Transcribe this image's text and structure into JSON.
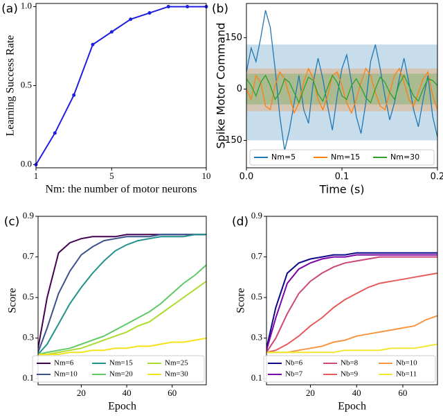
{
  "chart_data": [
    {
      "type": "line",
      "panel_label": "(a)",
      "ylabel": "Learning Success Rate",
      "xlabel": "Nm: the number of motor neurons",
      "marker": true,
      "x": [
        1,
        2,
        3,
        4,
        5,
        6,
        7,
        8,
        9,
        10
      ],
      "series": [
        {
          "color": "#1f1fe0",
          "values": [
            0.0,
            0.2,
            0.44,
            0.76,
            0.84,
            0.92,
            0.96,
            1.0,
            1.0,
            1.0
          ]
        }
      ],
      "xlim": [
        1,
        10
      ],
      "ylim": [
        -0.02,
        1.02
      ],
      "xticks": [
        1,
        5,
        10
      ],
      "yticks": [
        {
          "value": 0,
          "label": "0.0"
        },
        0.5,
        {
          "value": 1,
          "label": "1.0"
        }
      ]
    },
    {
      "type": "line",
      "panel_label": "(b)",
      "ylabel": "Spike Motor Command",
      "xlabel": "Time (s)",
      "legend": "lower center",
      "x": [
        0,
        0.005,
        0.01,
        0.015,
        0.02,
        0.025,
        0.03,
        0.035,
        0.04,
        0.045,
        0.05,
        0.055,
        0.06,
        0.065,
        0.07,
        0.075,
        0.08,
        0.085,
        0.09,
        0.095,
        0.1,
        0.105,
        0.11,
        0.115,
        0.12,
        0.125,
        0.13,
        0.135,
        0.14,
        0.145,
        0.15,
        0.155,
        0.16,
        0.165,
        0.17,
        0.175,
        0.18,
        0.185,
        0.19,
        0.195,
        0.2
      ],
      "series": [
        {
          "name": "Nm=5",
          "color": "#1f77b4",
          "band": [
            -150,
            130
          ],
          "values": [
            50,
            120,
            80,
            150,
            230,
            180,
            60,
            -80,
            -180,
            -120,
            -40,
            40,
            -60,
            -100,
            20,
            90,
            30,
            -50,
            -120,
            -20,
            60,
            100,
            20,
            -80,
            -130,
            -40,
            80,
            130,
            60,
            -20,
            -90,
            -40,
            30,
            90,
            20,
            -60,
            -110,
            -30,
            40,
            -80,
            -140
          ]
        },
        {
          "name": "Nm=15",
          "color": "#ff7f0e",
          "band": [
            -65,
            60
          ],
          "values": [
            0,
            -30,
            40,
            20,
            -50,
            -60,
            10,
            50,
            30,
            -20,
            -70,
            -40,
            20,
            60,
            30,
            -30,
            -60,
            -20,
            40,
            50,
            10,
            -40,
            -70,
            -30,
            20,
            60,
            40,
            -10,
            -50,
            -60,
            -10,
            40,
            60,
            20,
            -30,
            -50,
            -10,
            30,
            50,
            -20,
            -60
          ]
        },
        {
          "name": "Nm=30",
          "color": "#2ca02c",
          "band": [
            -45,
            45
          ],
          "values": [
            30,
            10,
            -20,
            20,
            40,
            10,
            -30,
            -10,
            30,
            20,
            -10,
            -40,
            0,
            35,
            25,
            -15,
            -35,
            5,
            40,
            20,
            -20,
            -30,
            10,
            30,
            5,
            -25,
            -40,
            0,
            35,
            20,
            -10,
            -30,
            15,
            40,
            10,
            -20,
            -35,
            0,
            30,
            25,
            10
          ]
        }
      ],
      "xlim": [
        0,
        0.2
      ],
      "ylim": [
        -230,
        250
      ],
      "xticks": [
        {
          "value": 0,
          "label": "0.0"
        },
        0.1,
        {
          "value": 0.2,
          "label": "0.2"
        }
      ],
      "yticks": [
        {
          "value": -150,
          "label": "−150"
        },
        0,
        150
      ]
    },
    {
      "type": "line",
      "panel_label": "(c)",
      "ylabel": "Score",
      "xlabel": "Epoch",
      "legend": "lower right",
      "x": [
        1,
        5,
        10,
        15,
        20,
        25,
        30,
        35,
        40,
        45,
        50,
        55,
        60,
        65,
        70,
        75
      ],
      "series": [
        {
          "name": "Nm=6",
          "color": "#440154",
          "values": [
            0.25,
            0.5,
            0.72,
            0.77,
            0.79,
            0.8,
            0.8,
            0.8,
            0.81,
            0.81,
            0.81,
            0.81,
            0.81,
            0.81,
            0.81,
            0.81
          ]
        },
        {
          "name": "Nm=10",
          "color": "#3b528b",
          "values": [
            0.23,
            0.35,
            0.52,
            0.63,
            0.71,
            0.75,
            0.78,
            0.79,
            0.8,
            0.8,
            0.8,
            0.81,
            0.81,
            0.81,
            0.81,
            0.81
          ]
        },
        {
          "name": "Nm=15",
          "color": "#21918c",
          "values": [
            0.22,
            0.27,
            0.37,
            0.47,
            0.55,
            0.62,
            0.68,
            0.73,
            0.76,
            0.78,
            0.79,
            0.8,
            0.8,
            0.8,
            0.81,
            0.81
          ]
        },
        {
          "name": "Nm=20",
          "color": "#5ec962",
          "values": [
            0.22,
            0.23,
            0.24,
            0.25,
            0.27,
            0.29,
            0.31,
            0.34,
            0.37,
            0.4,
            0.43,
            0.47,
            0.52,
            0.57,
            0.61,
            0.66
          ]
        },
        {
          "name": "Nm=25",
          "color": "#addc30",
          "values": [
            0.22,
            0.22,
            0.23,
            0.24,
            0.25,
            0.27,
            0.29,
            0.31,
            0.33,
            0.36,
            0.38,
            0.42,
            0.46,
            0.5,
            0.54,
            0.58
          ]
        },
        {
          "name": "Nm=30",
          "color": "#f5e21a",
          "values": [
            0.22,
            0.22,
            0.22,
            0.23,
            0.23,
            0.24,
            0.24,
            0.25,
            0.25,
            0.26,
            0.26,
            0.27,
            0.28,
            0.28,
            0.29,
            0.3
          ]
        }
      ],
      "xlim": [
        1,
        75
      ],
      "ylim": [
        0.07,
        0.9
      ],
      "xticks": [
        20,
        40,
        60
      ],
      "yticks": [
        0.1,
        0.3,
        0.5,
        0.7,
        0.9
      ]
    },
    {
      "type": "line",
      "panel_label": "(d)",
      "ylabel": "Score",
      "xlabel": "Epoch",
      "legend": "lower right",
      "x": [
        1,
        5,
        10,
        15,
        20,
        25,
        30,
        35,
        40,
        45,
        50,
        55,
        60,
        65,
        70,
        75
      ],
      "series": [
        {
          "name": "Nb=6",
          "color": "#0d0887",
          "values": [
            0.25,
            0.45,
            0.62,
            0.67,
            0.69,
            0.7,
            0.71,
            0.71,
            0.72,
            0.72,
            0.72,
            0.72,
            0.72,
            0.72,
            0.72,
            0.72
          ]
        },
        {
          "name": "Nb=7",
          "color": "#7e03a8",
          "values": [
            0.24,
            0.4,
            0.57,
            0.64,
            0.67,
            0.69,
            0.7,
            0.7,
            0.71,
            0.71,
            0.71,
            0.71,
            0.71,
            0.71,
            0.71,
            0.71
          ]
        },
        {
          "name": "Nb=8",
          "color": "#cc4778",
          "values": [
            0.23,
            0.3,
            0.42,
            0.52,
            0.58,
            0.62,
            0.65,
            0.67,
            0.68,
            0.69,
            0.7,
            0.7,
            0.7,
            0.7,
            0.7,
            0.7
          ]
        },
        {
          "name": "Nb=9",
          "color": "#e65a5a",
          "values": [
            0.23,
            0.24,
            0.27,
            0.31,
            0.36,
            0.4,
            0.45,
            0.49,
            0.52,
            0.55,
            0.57,
            0.58,
            0.59,
            0.6,
            0.61,
            0.62
          ]
        },
        {
          "name": "Nb=10",
          "color": "#f89540",
          "values": [
            0.23,
            0.23,
            0.23,
            0.24,
            0.25,
            0.26,
            0.28,
            0.29,
            0.31,
            0.32,
            0.33,
            0.34,
            0.35,
            0.36,
            0.39,
            0.41
          ]
        },
        {
          "name": "Nb=11",
          "color": "#f0e830",
          "values": [
            0.23,
            0.23,
            0.23,
            0.23,
            0.23,
            0.23,
            0.23,
            0.24,
            0.24,
            0.24,
            0.24,
            0.25,
            0.25,
            0.25,
            0.26,
            0.27
          ]
        }
      ],
      "xlim": [
        1,
        75
      ],
      "ylim": [
        0.07,
        0.9
      ],
      "xticks": [
        20,
        40,
        60
      ],
      "yticks": [
        0.1,
        0.3,
        0.5,
        0.7,
        0.9
      ]
    }
  ]
}
